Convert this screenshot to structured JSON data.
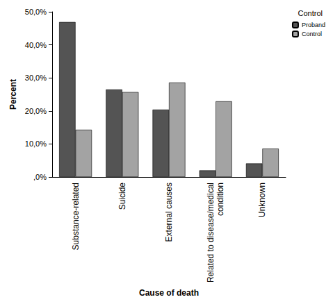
{
  "chart_data": {
    "type": "bar",
    "x_label": "Cause of death",
    "y_label": "Percent",
    "legend_title": "Control",
    "categories": [
      "Substance-related",
      "Suicide",
      "External causes",
      "Related to disease/medical condition",
      "Unknown"
    ],
    "series": [
      {
        "name": "Proband",
        "color": "#545454",
        "values": [
          46.9,
          26.5,
          20.4,
          2.0,
          4.1
        ]
      },
      {
        "name": "Control",
        "color": "#a3a3a3",
        "values": [
          14.3,
          25.7,
          28.6,
          22.9,
          8.6
        ]
      }
    ],
    "ylim": [
      0,
      50
    ],
    "yticks": [
      {
        "value": 0,
        "label": ",0%"
      },
      {
        "value": 10,
        "label": "10,0%"
      },
      {
        "value": 20,
        "label": "20,0%"
      },
      {
        "value": 30,
        "label": "30,0%"
      },
      {
        "value": 40,
        "label": "40,0%"
      },
      {
        "value": 50,
        "label": "50,0%"
      }
    ],
    "grid": false,
    "legend": "top-right"
  }
}
